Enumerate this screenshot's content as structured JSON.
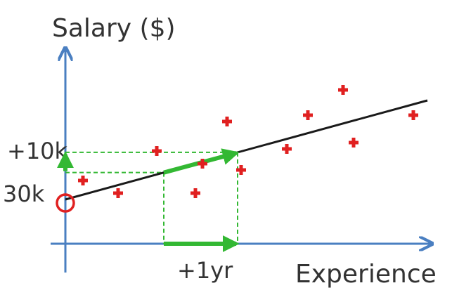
{
  "chart_data": {
    "type": "scatter",
    "title": "",
    "xlabel": "Experience",
    "ylabel": "Salary ($)",
    "y_tick_labels": [
      "30k",
      "+10k"
    ],
    "x_annotation": "+1yr",
    "xlim": [
      0,
      10
    ],
    "ylim": [
      0,
      10
    ],
    "intercept_label": "30k",
    "points": [
      {
        "x": 0.5,
        "y": 3.0
      },
      {
        "x": 1.5,
        "y": 2.4
      },
      {
        "x": 2.6,
        "y": 4.4
      },
      {
        "x": 3.9,
        "y": 3.8
      },
      {
        "x": 3.7,
        "y": 2.4
      },
      {
        "x": 4.6,
        "y": 5.8
      },
      {
        "x": 5.0,
        "y": 3.5
      },
      {
        "x": 6.3,
        "y": 4.5
      },
      {
        "x": 6.9,
        "y": 6.1
      },
      {
        "x": 7.9,
        "y": 7.3
      },
      {
        "x": 8.2,
        "y": 4.8
      },
      {
        "x": 9.9,
        "y": 6.1
      }
    ],
    "fit_line": {
      "x0": 0,
      "y0": 2.1,
      "x1": 10.3,
      "y1": 6.8
    },
    "slope_demo": {
      "x_start": 2.8,
      "x_end": 4.9
    },
    "colors": {
      "axis": "#4a7fc1",
      "points": "#e02020",
      "fit_line": "#1a1a1a",
      "slope": "#33b833",
      "intercept_marker": "#e02020"
    }
  }
}
